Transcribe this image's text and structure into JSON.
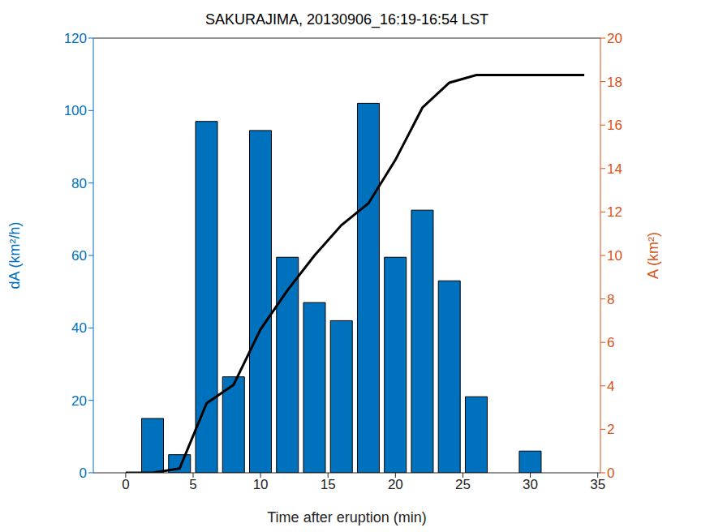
{
  "chart_data": {
    "type": "bar",
    "title": "SAKURAJIMA, 20130906_16:19-16:54 LST",
    "x_label": "Time after eruption (min)",
    "y_label": "dA (km²/h)",
    "y2_label": "A (km²)",
    "x": [
      0,
      2,
      4,
      6,
      8,
      10,
      12,
      14,
      16,
      18,
      20,
      22,
      24,
      26,
      28,
      30,
      32,
      34
    ],
    "series": [
      {
        "type": "bar",
        "color": "#0072bd",
        "values": [
          null,
          15,
          5,
          97,
          26.5,
          94.5,
          59.5,
          47,
          42,
          102,
          59.5,
          72.5,
          53,
          21,
          null,
          6,
          null,
          null
        ]
      },
      {
        "type": "line",
        "color": "#000000",
        "axis": "y2",
        "values": [
          0,
          0,
          0.2,
          3.2,
          4.05,
          6.6,
          8.4,
          10,
          11.4,
          12.4,
          14.4,
          16.8,
          17.95,
          18.3,
          18.3,
          18.3,
          18.3,
          18.3
        ]
      }
    ],
    "xlim": [
      -2.4,
      35.2
    ],
    "xticks": [
      0,
      5,
      10,
      15,
      20,
      25,
      30,
      35
    ],
    "ylim": [
      0,
      120
    ],
    "yticks": [
      0,
      20,
      40,
      60,
      80,
      100,
      120
    ],
    "y2lim": [
      0,
      20
    ],
    "y2ticks": [
      0,
      2,
      4,
      6,
      8,
      10,
      12,
      14,
      16,
      18,
      20
    ],
    "grid": false
  }
}
